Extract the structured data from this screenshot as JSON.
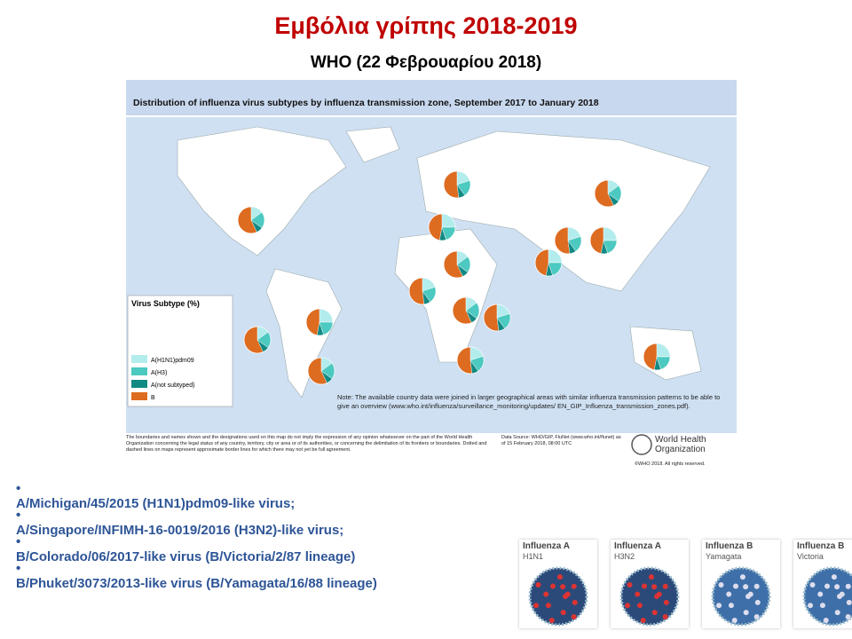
{
  "header": {
    "title": "Εμβόλια γρίπης 2018-2019",
    "subtitle": "WHO (22 Φεβρουαρίου 2018)"
  },
  "map": {
    "title": "Distribution of influenza virus subtypes by influenza transmission zone, September 2017 to January 2018",
    "legend_title": "Virus Subtype (%)",
    "legend": [
      "A(H1N1)pdm09",
      "A(H3)",
      "A(not subtyped)",
      "B"
    ],
    "note": "Note: The available country data were joined in larger geographical areas with similar influenza transmission patterns to be able to give an overview (www.who.int/influenza/surveillance_monitoring/updates/ EN_GIP_Influenza_transmission_zones.pdf).",
    "disclaimer": "The boundaries and names shown and the designations used on this map do not imply the expression of any opinion whatsoever on the part of the World Health Organization concerning the legal status of any country, territory, city or area or of its authorities, or concerning the delimitation of its frontiers or boundaries. Dotted and dashed lines on maps represent approximate border lines for which there may not yet be full agreement.",
    "source": "Data Source: WHO/GIP, FluNet (www.who.int/flunet) as of 15 February 2018, 08:00 UTC",
    "who": "World Health Organization",
    "copyright": "©WHO 2018. All rights reserved."
  },
  "bullets": [
    "A/Michigan/45/2015 (H1N1)pdm09-like virus;",
    "A/Singapore/INFIMH-16-0019/2016 (H3N2)-like virus;",
    "B/Colorado/06/2017-like virus (B/Victoria/2/87 lineage)",
    "B/Phuket/3073/2013-like virus (B/Yamagata/16/88 lineage)"
  ],
  "viruses": [
    {
      "name": "Influenza A",
      "type": "H1N1"
    },
    {
      "name": "Influenza A",
      "type": "H3N2"
    },
    {
      "name": "Influenza B",
      "type": "Yamagata"
    },
    {
      "name": "Influenza B",
      "type": "Victoria"
    }
  ]
}
